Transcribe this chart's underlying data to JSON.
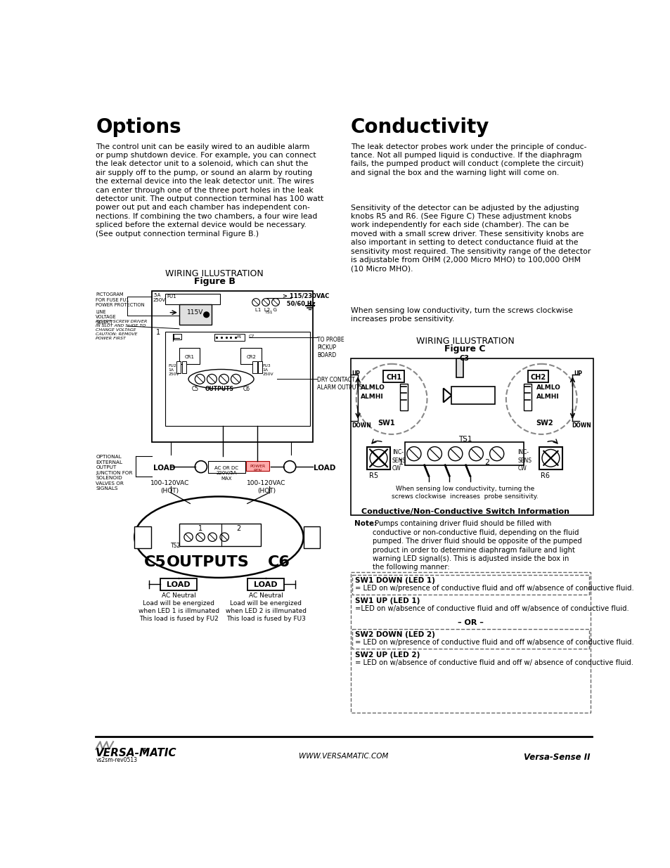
{
  "bg_color": "#ffffff",
  "page_width": 9.54,
  "page_height": 12.35,
  "left_title": "Options",
  "right_title": "Conductivity",
  "left_body": "The control unit can be easily wired to an audible alarm\nor pump shutdown device. For example, you can connect\nthe leak detector unit to a solenoid, which can shut the\nair supply off to the pump, or sound an alarm by routing\nthe external device into the leak detector unit. The wires\ncan enter through one of the three port holes in the leak\ndetector unit. The output connection terminal has 100 watt\npower out put and each chamber has independent con-\nnections. If combining the two chambers, a four wire lead\nspliced before the external device would be necessary.\n(See output connection terminal Figure B.)",
  "right_body1": "The leak detector probes work under the principle of conduc-\ntance. Not all pumped liquid is conductive. If the diaphragm\nfails, the pumped product will conduct (complete the circuit)\nand signal the box and the warning light will come on.",
  "right_body2": "Sensitivity of the detector can be adjusted by the adjusting\nknobs R5 and R6. (See Figure C) These adjustment knobs\nwork independently for each side (chamber). The can be\nmoved with a small screw driver. These sensitivity knobs are\nalso important in setting to detect conductance fluid at the\nsensitivity most required. The sensitivity range of the detector\nis adjustable from OHM (2,000 Micro MHO) to 100,000 OHM\n(10 Micro MHO).",
  "right_body3": "When sensing low conductivity, turn the screws clockwise\nincreases probe sensitivity.",
  "fig_b_title_line1": "WIRING ILLUSTRATION",
  "fig_b_title_line2": "Figure B",
  "fig_c_title_line1": "WIRING ILLUSTRATION",
  "fig_c_title_line2": "Figure C",
  "footer_left": "vs2sm-rev0513",
  "footer_center": "WWW.VERSAMATIC.COM",
  "footer_right": "Versa-Sense II",
  "sw_info_title": "Conductive/Non-Conductive Switch Information",
  "note_bold": "Note:",
  "note_text": " Pumps containing driver fluid should be filled with\nconductive or non-conductive fluid, depending on the fluid\npumped. The driver fluid should be opposite of the pumped\nproduct in order to determine diaphragm failure and light\nwarning LED signal(s). This is adjusted inside the box in\nthe following manner:",
  "or_text": "– OR –"
}
